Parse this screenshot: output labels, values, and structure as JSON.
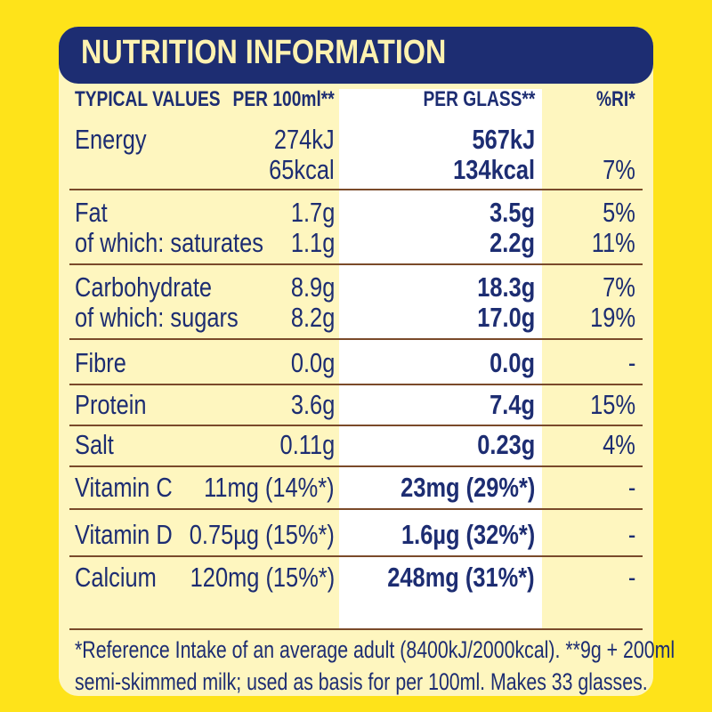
{
  "title": "NUTRITION INFORMATION",
  "headers": {
    "typical_values": "TYPICAL VALUES",
    "per_100ml": "PER 100ml**",
    "per_glass": "PER GLASS**",
    "ri": "%RI*"
  },
  "rows": [
    {
      "name": "Energy",
      "per100": "274kJ",
      "glass": "567kJ",
      "ri": ""
    },
    {
      "name": "",
      "per100": "65kcal",
      "glass": "134kcal",
      "ri": "7%"
    },
    {
      "name": "Fat",
      "per100": "1.7g",
      "glass": "3.5g",
      "ri": "5%"
    },
    {
      "name": "of which: saturates",
      "per100": "1.1g",
      "glass": "2.2g",
      "ri": "11%"
    },
    {
      "name": "Carbohydrate",
      "per100": "8.9g",
      "glass": "18.3g",
      "ri": "7%"
    },
    {
      "name": "of which: sugars",
      "per100": "8.2g",
      "glass": "17.0g",
      "ri": "19%"
    },
    {
      "name": "Fibre",
      "per100": "0.0g",
      "glass": "0.0g",
      "ri": "-"
    },
    {
      "name": "Protein",
      "per100": "3.6g",
      "glass": "7.4g",
      "ri": "15%"
    },
    {
      "name": "Salt",
      "per100": "0.11g",
      "glass": "0.23g",
      "ri": "4%"
    },
    {
      "name": "Vitamin C",
      "per100": "11mg (14%*)",
      "glass": "23mg (29%*)",
      "ri": "-"
    },
    {
      "name": "Vitamin D",
      "per100": "0.75µg (15%*)",
      "glass": "1.6µg (32%*)",
      "ri": "-"
    },
    {
      "name": "Calcium",
      "per100": "120mg (15%*)",
      "glass": "248mg (31%*)",
      "ri": "-"
    }
  ],
  "footnote": {
    "line1": "*Reference Intake of an average adult (8400kJ/2000kcal). **9g + 200ml",
    "line2": "semi-skimmed milk; used as basis for per 100ml. Makes 33 glasses."
  },
  "colors": {
    "background": "#FEE31A",
    "panel": "#FEF6BF",
    "navy": "#1D2D72",
    "title_text": "#FFF2B0",
    "divider": "#7A4A2A"
  }
}
